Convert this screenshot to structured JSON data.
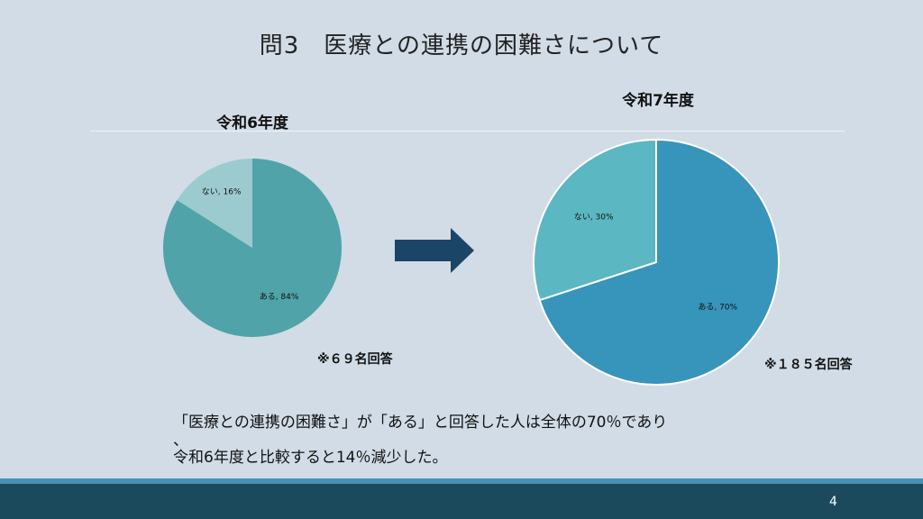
{
  "slide": {
    "title": "問3　医療との連携の困難さについて",
    "summary_line1": "「医療との連携の困難さ」が「ある」と回答した人は全体の70％であり",
    "summary_line2": "、",
    "summary_line3": "令和6年度と比較すると14％減少した。",
    "page_number": "4"
  },
  "chart_data": [
    {
      "type": "pie",
      "title": "令和6年度",
      "slices": [
        {
          "label": "ない",
          "value": 16,
          "display": "ない, 16%",
          "color": "#9ccbcf"
        },
        {
          "label": "ある",
          "value": 84,
          "display": "ある, 84%",
          "color": "#50a3a8"
        }
      ],
      "note": "※６９名回答"
    },
    {
      "type": "pie",
      "title": "令和7年度",
      "slices": [
        {
          "label": "ない",
          "value": 30,
          "display": "ない, 30%",
          "color": "#5bb7c1"
        },
        {
          "label": "ある",
          "value": 70,
          "display": "ある, 70%",
          "color": "#3794bb"
        }
      ],
      "note": "※１８５名回答"
    }
  ],
  "colors": {
    "background": "#d1dce7",
    "arrow": "#1b4566",
    "footer": "#1b4a5c",
    "footer_accent": "#4a8fb4"
  }
}
